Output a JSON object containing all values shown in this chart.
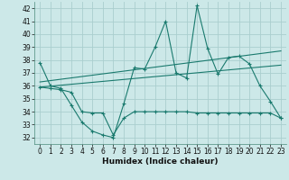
{
  "xlabel": "Humidex (Indice chaleur)",
  "background_color": "#cce8e8",
  "grid_color": "#aacece",
  "line_color": "#1a7a6e",
  "xlim": [
    -0.5,
    23.5
  ],
  "ylim": [
    31.5,
    42.5
  ],
  "yticks": [
    32,
    33,
    34,
    35,
    36,
    37,
    38,
    39,
    40,
    41,
    42
  ],
  "xticks": [
    0,
    1,
    2,
    3,
    4,
    5,
    6,
    7,
    8,
    9,
    10,
    11,
    12,
    13,
    14,
    15,
    16,
    17,
    18,
    19,
    20,
    21,
    22,
    23
  ],
  "curve1": [
    37.8,
    36.0,
    35.8,
    34.5,
    33.2,
    32.5,
    32.2,
    32.0,
    34.6,
    37.4,
    37.3,
    39.0,
    41.0,
    37.0,
    36.6,
    42.2,
    38.9,
    36.9,
    38.2,
    38.3,
    37.7,
    36.0,
    34.8,
    33.5
  ],
  "curve2": [
    35.9,
    35.8,
    35.7,
    35.5,
    34.0,
    33.9,
    33.9,
    32.2,
    33.5,
    34.0,
    34.0,
    34.0,
    34.0,
    34.0,
    34.0,
    33.9,
    33.9,
    33.9,
    33.9,
    33.9,
    33.9,
    33.9,
    33.9,
    33.5
  ],
  "trend1_x": [
    0,
    23
  ],
  "trend1_y": [
    35.9,
    37.6
  ],
  "trend2_x": [
    0,
    23
  ],
  "trend2_y": [
    36.3,
    38.7
  ]
}
